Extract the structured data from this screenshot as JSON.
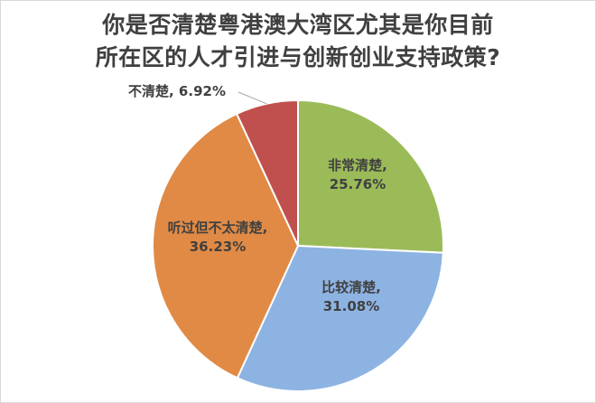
{
  "title_lines": [
    "你是否清楚粤港澳大湾区尤其是你目前",
    "所在区的人才引进与创新创业支持政策?"
  ],
  "chart_data": {
    "type": "pie",
    "title": "你是否清楚粤港澳大湾区尤其是你目前所在区的人才引进与创新创业支持政策?",
    "unit": "%",
    "slices": [
      {
        "label": "非常清楚",
        "value": 25.76,
        "value_text": "25.76%",
        "color": "#9bbb59"
      },
      {
        "label": "比较清楚",
        "value": 31.08,
        "value_text": "31.08%",
        "color": "#8db3e2"
      },
      {
        "label": "听过但不太清楚",
        "value": 36.23,
        "value_text": "36.23%",
        "color": "#e08a45"
      },
      {
        "label": "不清楚",
        "value": 6.92,
        "value_text": "6.92%",
        "color": "#c0504d"
      }
    ],
    "start_angle_deg": 0,
    "direction": "clockwise",
    "label_color": "#404040",
    "outside_label_index": 3
  }
}
